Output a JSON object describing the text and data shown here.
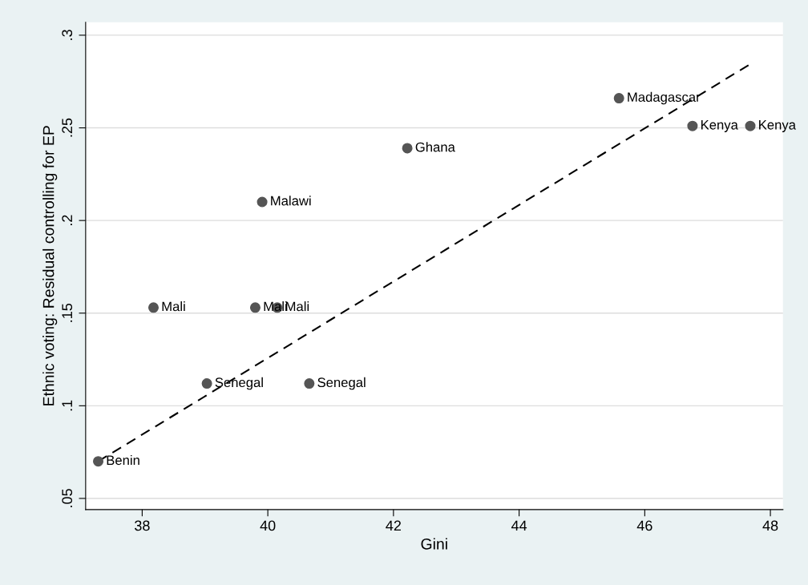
{
  "chart_data": {
    "type": "scatter",
    "xlabel": "Gini",
    "ylabel": "Ethnic voting: Residual controlling for EP",
    "xlim": [
      37.1,
      48.2
    ],
    "ylim": [
      0.044,
      0.307
    ],
    "xticks": [
      38,
      40,
      42,
      44,
      46,
      48
    ],
    "yticks": [
      {
        "value": 0.05,
        "label": ".05"
      },
      {
        "value": 0.1,
        "label": ".1"
      },
      {
        "value": 0.15,
        "label": ".15"
      },
      {
        "value": 0.2,
        "label": ".2"
      },
      {
        "value": 0.25,
        "label": ".25"
      },
      {
        "value": 0.3,
        "label": ".3"
      }
    ],
    "grid": "y",
    "series": [
      {
        "marker": "circle",
        "color": "#555555",
        "x": [
          37.3,
          38.18,
          39.03,
          39.8,
          40.15,
          39.91,
          40.66,
          42.22,
          45.59,
          46.76,
          47.68
        ],
        "values": [
          0.07,
          0.153,
          0.112,
          0.153,
          0.153,
          0.21,
          0.112,
          0.239,
          0.266,
          0.251,
          0.251
        ]
      },
      {
        "type": "line",
        "marker": "none",
        "color": "#000000",
        "line_style": "dashed",
        "x": [
          37.3,
          47.66
        ],
        "values": [
          0.07,
          0.284
        ]
      }
    ],
    "annotations": [
      {
        "text": "Benin",
        "x": 37.3,
        "y": 0.07
      },
      {
        "text": "Mali",
        "x": 38.18,
        "y": 0.153
      },
      {
        "text": "Senegal",
        "x": 39.03,
        "y": 0.112
      },
      {
        "text": "Mali",
        "x": 39.8,
        "y": 0.153
      },
      {
        "text": "Mali",
        "x": 40.15,
        "y": 0.153
      },
      {
        "text": "Malawi",
        "x": 39.91,
        "y": 0.21
      },
      {
        "text": "Senegal",
        "x": 40.66,
        "y": 0.112
      },
      {
        "text": "Ghana",
        "x": 42.22,
        "y": 0.239
      },
      {
        "text": "Madagascar",
        "x": 45.59,
        "y": 0.266
      },
      {
        "text": "Kenya",
        "x": 46.76,
        "y": 0.251
      },
      {
        "text": "Kenya",
        "x": 47.68,
        "y": 0.251
      }
    ]
  }
}
